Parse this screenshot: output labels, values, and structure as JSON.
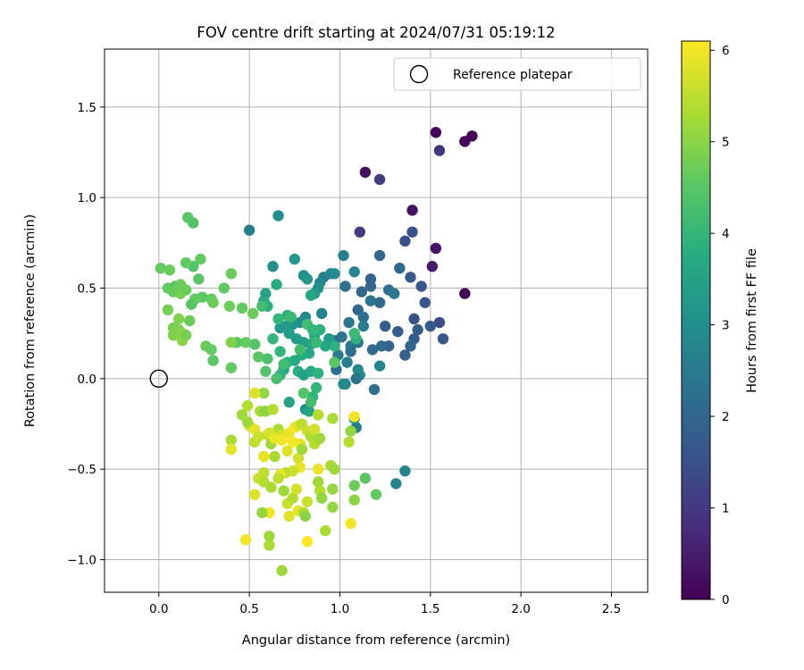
{
  "chart_data": {
    "type": "scatter",
    "title": "FOV centre drift starting at 2024/07/31 05:19:12",
    "xlabel": "Angular distance from reference (arcmin)",
    "ylabel": "Rotation from reference (arcmin)",
    "xlim": [
      -0.3,
      2.7
    ],
    "ylim": [
      -1.18,
      1.82
    ],
    "xticks": [
      0.0,
      0.5,
      1.0,
      1.5,
      2.0,
      2.5
    ],
    "xtick_labels": [
      "0.0",
      "0.5",
      "1.0",
      "1.5",
      "2.0",
      "2.5"
    ],
    "yticks": [
      -1.0,
      -0.5,
      0.0,
      0.5,
      1.0,
      1.5
    ],
    "ytick_labels": [
      "−1.0",
      "−0.5",
      "0.0",
      "0.5",
      "1.0",
      "1.5"
    ],
    "grid": true,
    "legend": {
      "placement": "upper right",
      "entries": [
        "Reference platepar"
      ]
    },
    "reference_point": {
      "x": 0.0,
      "y": 0.0,
      "label": "Reference platepar",
      "marker": "open-circle"
    },
    "colorbar": {
      "label": "Hours from first FF file",
      "colormap": "viridis",
      "range": [
        0,
        6.1
      ],
      "ticks": [
        0,
        1,
        2,
        3,
        4,
        5,
        6
      ],
      "tick_labels": [
        "0",
        "1",
        "2",
        "3",
        "4",
        "5",
        "6"
      ]
    },
    "points": [
      {
        "x": 1.53,
        "y": 1.36,
        "h": 0.1
      },
      {
        "x": 1.73,
        "y": 1.34,
        "h": 0.0
      },
      {
        "x": 1.69,
        "y": 1.31,
        "h": 0.1
      },
      {
        "x": 1.55,
        "y": 1.26,
        "h": 0.9
      },
      {
        "x": 1.14,
        "y": 1.14,
        "h": 0.3
      },
      {
        "x": 1.22,
        "y": 1.1,
        "h": 1.1
      },
      {
        "x": 1.4,
        "y": 0.93,
        "h": 0.3
      },
      {
        "x": 1.11,
        "y": 0.81,
        "h": 1.1
      },
      {
        "x": 1.4,
        "y": 0.81,
        "h": 1.5
      },
      {
        "x": 1.53,
        "y": 0.72,
        "h": 0.3
      },
      {
        "x": 1.51,
        "y": 0.62,
        "h": 0.4
      },
      {
        "x": 1.69,
        "y": 0.47,
        "h": 0.0
      },
      {
        "x": 1.36,
        "y": 0.76,
        "h": 1.5
      },
      {
        "x": 1.22,
        "y": 0.68,
        "h": 2.0
      },
      {
        "x": 1.33,
        "y": 0.61,
        "h": 2.1
      },
      {
        "x": 1.45,
        "y": 0.51,
        "h": 1.6
      },
      {
        "x": 1.47,
        "y": 0.42,
        "h": 1.6
      },
      {
        "x": 1.39,
        "y": 0.56,
        "h": 1.7
      },
      {
        "x": 1.55,
        "y": 0.31,
        "h": 1.4
      },
      {
        "x": 1.41,
        "y": 0.33,
        "h": 1.5
      },
      {
        "x": 1.43,
        "y": 0.27,
        "h": 1.8
      },
      {
        "x": 1.41,
        "y": 0.22,
        "h": 1.7
      },
      {
        "x": 1.39,
        "y": 0.18,
        "h": 2.0
      },
      {
        "x": 1.36,
        "y": 0.13,
        "h": 1.9
      },
      {
        "x": 1.57,
        "y": 0.22,
        "h": 1.6
      },
      {
        "x": 1.5,
        "y": 0.29,
        "h": 1.7
      },
      {
        "x": 1.27,
        "y": 0.49,
        "h": 2.2
      },
      {
        "x": 1.3,
        "y": 0.47,
        "h": 2.4
      },
      {
        "x": 1.17,
        "y": 0.55,
        "h": 1.9
      },
      {
        "x": 1.17,
        "y": 0.51,
        "h": 2.0
      },
      {
        "x": 1.12,
        "y": 0.48,
        "h": 2.1
      },
      {
        "x": 1.17,
        "y": 0.43,
        "h": 2.3
      },
      {
        "x": 1.03,
        "y": 0.51,
        "h": 2.2
      },
      {
        "x": 1.02,
        "y": 0.68,
        "h": 2.6
      },
      {
        "x": 1.08,
        "y": 0.59,
        "h": 2.7
      },
      {
        "x": 1.22,
        "y": 0.42,
        "h": 2.0
      },
      {
        "x": 1.25,
        "y": 0.29,
        "h": 1.8
      },
      {
        "x": 1.32,
        "y": 0.26,
        "h": 1.8
      },
      {
        "x": 1.27,
        "y": 0.18,
        "h": 1.9
      },
      {
        "x": 1.23,
        "y": 0.18,
        "h": 2.1
      },
      {
        "x": 1.18,
        "y": 0.16,
        "h": 2.1
      },
      {
        "x": 1.1,
        "y": 0.38,
        "h": 2.0
      },
      {
        "x": 1.13,
        "y": 0.34,
        "h": 2.2
      },
      {
        "x": 1.13,
        "y": 0.29,
        "h": 2.5
      },
      {
        "x": 1.05,
        "y": 0.31,
        "h": 2.4
      },
      {
        "x": 1.01,
        "y": 0.23,
        "h": 2.3
      },
      {
        "x": 1.06,
        "y": 0.18,
        "h": 2.4
      },
      {
        "x": 1.1,
        "y": 0.2,
        "h": 2.3
      },
      {
        "x": 1.06,
        "y": 0.15,
        "h": 2.2
      },
      {
        "x": 0.97,
        "y": 0.21,
        "h": 2.2
      },
      {
        "x": 0.99,
        "y": 0.13,
        "h": 2.5
      },
      {
        "x": 1.04,
        "y": 0.09,
        "h": 2.6
      },
      {
        "x": 0.98,
        "y": 0.05,
        "h": 2.2
      },
      {
        "x": 1.1,
        "y": 0.05,
        "h": 2.8
      },
      {
        "x": 1.11,
        "y": 0.02,
        "h": 2.9
      },
      {
        "x": 1.09,
        "y": 0.0,
        "h": 2.3
      },
      {
        "x": 1.03,
        "y": -0.03,
        "h": 2.5
      },
      {
        "x": 1.02,
        "y": -0.03,
        "h": 2.9
      },
      {
        "x": 1.19,
        "y": -0.06,
        "h": 2.2
      },
      {
        "x": 1.22,
        "y": 0.07,
        "h": 2.8
      },
      {
        "x": 1.09,
        "y": -0.27,
        "h": 2.6
      },
      {
        "x": 1.08,
        "y": -0.22,
        "h": 2.9
      },
      {
        "x": 1.36,
        "y": -0.51,
        "h": 2.8
      },
      {
        "x": 1.31,
        "y": -0.58,
        "h": 2.7
      },
      {
        "x": 0.91,
        "y": 0.56,
        "h": 2.6
      },
      {
        "x": 0.95,
        "y": 0.58,
        "h": 2.7
      },
      {
        "x": 0.97,
        "y": 0.58,
        "h": 2.9
      },
      {
        "x": 0.89,
        "y": 0.53,
        "h": 2.8
      },
      {
        "x": 0.88,
        "y": 0.5,
        "h": 3.0
      },
      {
        "x": 0.86,
        "y": 0.47,
        "h": 3.2
      },
      {
        "x": 0.84,
        "y": 0.46,
        "h": 3.6
      },
      {
        "x": 0.8,
        "y": 0.57,
        "h": 3.0
      },
      {
        "x": 0.82,
        "y": 0.55,
        "h": 3.2
      },
      {
        "x": 0.75,
        "y": 0.66,
        "h": 3.2
      },
      {
        "x": 0.63,
        "y": 0.62,
        "h": 3.0
      },
      {
        "x": 0.66,
        "y": 0.9,
        "h": 3.0
      },
      {
        "x": 0.5,
        "y": 0.82,
        "h": 2.6
      },
      {
        "x": 0.59,
        "y": 0.47,
        "h": 3.5
      },
      {
        "x": 0.65,
        "y": 0.52,
        "h": 3.7
      },
      {
        "x": 0.58,
        "y": 0.43,
        "h": 3.6
      },
      {
        "x": 0.6,
        "y": 0.4,
        "h": 3.8
      },
      {
        "x": 0.9,
        "y": 0.36,
        "h": 2.7
      },
      {
        "x": 0.81,
        "y": 0.34,
        "h": 2.9
      },
      {
        "x": 0.78,
        "y": 0.31,
        "h": 3.0
      },
      {
        "x": 0.74,
        "y": 0.3,
        "h": 3.1
      },
      {
        "x": 0.7,
        "y": 0.29,
        "h": 3.3
      },
      {
        "x": 0.67,
        "y": 0.28,
        "h": 3.2
      },
      {
        "x": 0.72,
        "y": 0.25,
        "h": 3.4
      },
      {
        "x": 0.76,
        "y": 0.22,
        "h": 3.3
      },
      {
        "x": 0.8,
        "y": 0.2,
        "h": 3.4
      },
      {
        "x": 0.84,
        "y": 0.19,
        "h": 3.6
      },
      {
        "x": 0.86,
        "y": 0.24,
        "h": 3.7
      },
      {
        "x": 0.89,
        "y": 0.27,
        "h": 3.9
      },
      {
        "x": 0.83,
        "y": 0.14,
        "h": 3.6
      },
      {
        "x": 0.79,
        "y": 0.13,
        "h": 3.8
      },
      {
        "x": 0.75,
        "y": 0.1,
        "h": 3.7
      },
      {
        "x": 0.71,
        "y": 0.09,
        "h": 3.8
      },
      {
        "x": 0.69,
        "y": 0.05,
        "h": 3.6
      },
      {
        "x": 0.67,
        "y": 0.02,
        "h": 3.9
      },
      {
        "x": 0.77,
        "y": 0.04,
        "h": 3.8
      },
      {
        "x": 0.8,
        "y": 0.02,
        "h": 3.5
      },
      {
        "x": 0.84,
        "y": 0.04,
        "h": 3.7
      },
      {
        "x": 0.88,
        "y": 0.03,
        "h": 3.9
      },
      {
        "x": 0.94,
        "y": 0.22,
        "h": 3.3
      },
      {
        "x": 0.97,
        "y": 0.18,
        "h": 3.9
      },
      {
        "x": 0.92,
        "y": 0.18,
        "h": 3.6
      },
      {
        "x": 1.09,
        "y": 0.22,
        "h": 3.9
      },
      {
        "x": 1.08,
        "y": 0.25,
        "h": 4.1
      },
      {
        "x": 0.71,
        "y": 0.35,
        "h": 3.9
      },
      {
        "x": 0.73,
        "y": 0.34,
        "h": 4.1
      },
      {
        "x": 0.66,
        "y": 0.33,
        "h": 4.0
      },
      {
        "x": 0.63,
        "y": 0.22,
        "h": 4.0
      },
      {
        "x": 0.67,
        "y": 0.15,
        "h": 4.0
      },
      {
        "x": 0.69,
        "y": 0.08,
        "h": 4.2
      },
      {
        "x": 0.82,
        "y": 0.3,
        "h": 4.2
      },
      {
        "x": 0.85,
        "y": 0.27,
        "h": 4.0
      },
      {
        "x": 0.87,
        "y": 0.2,
        "h": 4.1
      },
      {
        "x": 0.78,
        "y": 0.16,
        "h": 4.2
      },
      {
        "x": 0.6,
        "y": 0.11,
        "h": 4.3
      },
      {
        "x": 0.59,
        "y": 0.04,
        "h": 4.4
      },
      {
        "x": 0.65,
        "y": 0.0,
        "h": 4.3
      },
      {
        "x": 0.72,
        "y": -0.13,
        "h": 3.5
      },
      {
        "x": 0.81,
        "y": -0.17,
        "h": 3.0
      },
      {
        "x": 0.83,
        "y": -0.18,
        "h": 3.6
      },
      {
        "x": 0.85,
        "y": -0.1,
        "h": 3.9
      },
      {
        "x": 0.87,
        "y": -0.05,
        "h": 4.0
      },
      {
        "x": 0.84,
        "y": -0.13,
        "h": 4.2
      },
      {
        "x": 0.8,
        "y": -0.08,
        "h": 4.4
      },
      {
        "x": 0.97,
        "y": 0.09,
        "h": 4.5
      },
      {
        "x": 0.53,
        "y": 0.19,
        "h": 4.4
      },
      {
        "x": 0.55,
        "y": 0.12,
        "h": 4.5
      },
      {
        "x": 0.48,
        "y": 0.2,
        "h": 4.6
      },
      {
        "x": 0.43,
        "y": 0.2,
        "h": 4.5
      },
      {
        "x": 0.4,
        "y": 0.06,
        "h": 4.6
      },
      {
        "x": 0.3,
        "y": 0.1,
        "h": 4.5
      },
      {
        "x": 0.26,
        "y": 0.18,
        "h": 4.7
      },
      {
        "x": 0.29,
        "y": 0.16,
        "h": 4.6
      },
      {
        "x": 0.39,
        "y": 0.4,
        "h": 4.7
      },
      {
        "x": 0.46,
        "y": 0.39,
        "h": 4.6
      },
      {
        "x": 0.52,
        "y": 0.36,
        "h": 4.7
      },
      {
        "x": 0.57,
        "y": 0.4,
        "h": 4.2
      },
      {
        "x": 0.36,
        "y": 0.5,
        "h": 4.6
      },
      {
        "x": 0.4,
        "y": 0.58,
        "h": 4.7
      },
      {
        "x": 0.29,
        "y": 0.44,
        "h": 4.6
      },
      {
        "x": 0.24,
        "y": 0.45,
        "h": 4.5
      },
      {
        "x": 0.3,
        "y": 0.42,
        "h": 4.7
      },
      {
        "x": 0.22,
        "y": 0.55,
        "h": 4.5
      },
      {
        "x": 0.23,
        "y": 0.66,
        "h": 4.6
      },
      {
        "x": 0.19,
        "y": 0.62,
        "h": 4.4
      },
      {
        "x": 0.15,
        "y": 0.64,
        "h": 4.6
      },
      {
        "x": 0.16,
        "y": 0.89,
        "h": 4.5
      },
      {
        "x": 0.19,
        "y": 0.86,
        "h": 4.4
      },
      {
        "x": 0.01,
        "y": 0.61,
        "h": 4.6
      },
      {
        "x": 0.06,
        "y": 0.6,
        "h": 4.7
      },
      {
        "x": 0.05,
        "y": 0.5,
        "h": 4.6
      },
      {
        "x": 0.09,
        "y": 0.51,
        "h": 4.5
      },
      {
        "x": 0.12,
        "y": 0.52,
        "h": 4.7
      },
      {
        "x": 0.08,
        "y": 0.48,
        "h": 4.6
      },
      {
        "x": 0.12,
        "y": 0.47,
        "h": 4.8
      },
      {
        "x": 0.15,
        "y": 0.49,
        "h": 4.7
      },
      {
        "x": 0.2,
        "y": 0.44,
        "h": 4.6
      },
      {
        "x": 0.18,
        "y": 0.41,
        "h": 4.5
      },
      {
        "x": 0.05,
        "y": 0.38,
        "h": 4.8
      },
      {
        "x": 0.11,
        "y": 0.33,
        "h": 4.9
      },
      {
        "x": 0.17,
        "y": 0.32,
        "h": 4.7
      },
      {
        "x": 0.08,
        "y": 0.28,
        "h": 4.8
      },
      {
        "x": 0.11,
        "y": 0.27,
        "h": 4.9
      },
      {
        "x": 0.13,
        "y": 0.25,
        "h": 5.0
      },
      {
        "x": 0.08,
        "y": 0.24,
        "h": 4.9
      },
      {
        "x": 0.13,
        "y": 0.21,
        "h": 5.0
      },
      {
        "x": 0.15,
        "y": 0.24,
        "h": 4.8
      },
      {
        "x": 0.4,
        "y": 0.2,
        "h": 4.9
      },
      {
        "x": 0.58,
        "y": -0.08,
        "h": 5.1
      },
      {
        "x": 0.53,
        "y": -0.08,
        "h": 5.8
      },
      {
        "x": 0.49,
        "y": -0.15,
        "h": 5.4
      },
      {
        "x": 0.46,
        "y": -0.2,
        "h": 5.2
      },
      {
        "x": 0.56,
        "y": -0.18,
        "h": 5.3
      },
      {
        "x": 0.59,
        "y": -0.18,
        "h": 5.0
      },
      {
        "x": 0.63,
        "y": -0.17,
        "h": 5.4
      },
      {
        "x": 0.5,
        "y": -0.26,
        "h": 5.6
      },
      {
        "x": 0.53,
        "y": -0.28,
        "h": 5.9
      },
      {
        "x": 0.49,
        "y": -0.24,
        "h": 5.2
      },
      {
        "x": 0.4,
        "y": -0.34,
        "h": 5.3
      },
      {
        "x": 0.4,
        "y": -0.39,
        "h": 5.9
      },
      {
        "x": 0.53,
        "y": -0.35,
        "h": 5.5
      },
      {
        "x": 0.55,
        "y": -0.32,
        "h": 5.6
      },
      {
        "x": 0.6,
        "y": -0.31,
        "h": 5.5
      },
      {
        "x": 0.66,
        "y": -0.28,
        "h": 5.3
      },
      {
        "x": 0.62,
        "y": -0.36,
        "h": 5.2
      },
      {
        "x": 0.68,
        "y": -0.31,
        "h": 5.7
      },
      {
        "x": 0.72,
        "y": -0.3,
        "h": 5.9
      },
      {
        "x": 0.75,
        "y": -0.27,
        "h": 6.0
      },
      {
        "x": 0.77,
        "y": -0.26,
        "h": 5.8
      },
      {
        "x": 0.79,
        "y": -0.25,
        "h": 5.5
      },
      {
        "x": 0.82,
        "y": -0.29,
        "h": 5.6
      },
      {
        "x": 0.84,
        "y": -0.32,
        "h": 5.3
      },
      {
        "x": 0.86,
        "y": -0.36,
        "h": 5.4
      },
      {
        "x": 0.89,
        "y": -0.33,
        "h": 5.2
      },
      {
        "x": 0.86,
        "y": -0.28,
        "h": 5.7
      },
      {
        "x": 0.78,
        "y": -0.36,
        "h": 5.9
      },
      {
        "x": 0.74,
        "y": -0.35,
        "h": 6.0
      },
      {
        "x": 0.71,
        "y": -0.4,
        "h": 5.8
      },
      {
        "x": 0.77,
        "y": -0.44,
        "h": 5.7
      },
      {
        "x": 0.78,
        "y": -0.49,
        "h": 5.9
      },
      {
        "x": 0.74,
        "y": -0.51,
        "h": 5.6
      },
      {
        "x": 0.7,
        "y": -0.52,
        "h": 5.5
      },
      {
        "x": 0.67,
        "y": -0.53,
        "h": 5.9
      },
      {
        "x": 0.58,
        "y": -0.43,
        "h": 5.9
      },
      {
        "x": 0.58,
        "y": -0.52,
        "h": 5.5
      },
      {
        "x": 0.64,
        "y": -0.43,
        "h": 5.3
      },
      {
        "x": 0.55,
        "y": -0.55,
        "h": 5.6
      },
      {
        "x": 0.53,
        "y": -0.64,
        "h": 5.8
      },
      {
        "x": 0.58,
        "y": -0.57,
        "h": 5.4
      },
      {
        "x": 0.62,
        "y": -0.6,
        "h": 5.3
      },
      {
        "x": 0.66,
        "y": -0.55,
        "h": 5.5
      },
      {
        "x": 0.69,
        "y": -0.62,
        "h": 5.2
      },
      {
        "x": 0.71,
        "y": -0.69,
        "h": 5.6
      },
      {
        "x": 0.74,
        "y": -0.66,
        "h": 5.4
      },
      {
        "x": 0.76,
        "y": -0.61,
        "h": 5.7
      },
      {
        "x": 0.77,
        "y": -0.73,
        "h": 5.9
      },
      {
        "x": 0.72,
        "y": -0.76,
        "h": 5.8
      },
      {
        "x": 0.8,
        "y": -0.74,
        "h": 5.3
      },
      {
        "x": 0.81,
        "y": -0.76,
        "h": 5.0
      },
      {
        "x": 0.82,
        "y": -0.68,
        "h": 5.6
      },
      {
        "x": 0.88,
        "y": -0.57,
        "h": 5.2
      },
      {
        "x": 0.89,
        "y": -0.62,
        "h": 5.4
      },
      {
        "x": 0.9,
        "y": -0.66,
        "h": 5.1
      },
      {
        "x": 0.88,
        "y": -0.5,
        "h": 5.9
      },
      {
        "x": 0.95,
        "y": -0.48,
        "h": 5.3
      },
      {
        "x": 0.97,
        "y": -0.5,
        "h": 5.2
      },
      {
        "x": 0.96,
        "y": -0.61,
        "h": 5.1
      },
      {
        "x": 0.92,
        "y": -0.84,
        "h": 5.3
      },
      {
        "x": 0.96,
        "y": -0.71,
        "h": 5.1
      },
      {
        "x": 1.06,
        "y": -0.8,
        "h": 6.0
      },
      {
        "x": 1.08,
        "y": -0.67,
        "h": 5.0
      },
      {
        "x": 1.08,
        "y": -0.59,
        "h": 4.7
      },
      {
        "x": 1.14,
        "y": -0.55,
        "h": 4.5
      },
      {
        "x": 1.2,
        "y": -0.64,
        "h": 4.6
      },
      {
        "x": 1.05,
        "y": -0.35,
        "h": 5.4
      },
      {
        "x": 1.06,
        "y": -0.29,
        "h": 5.1
      },
      {
        "x": 1.08,
        "y": -0.21,
        "h": 6.0
      },
      {
        "x": 0.96,
        "y": -0.22,
        "h": 5.3
      },
      {
        "x": 0.82,
        "y": -0.9,
        "h": 6.1
      },
      {
        "x": 0.48,
        "y": -0.89,
        "h": 6.0
      },
      {
        "x": 0.61,
        "y": -0.74,
        "h": 6.0
      },
      {
        "x": 0.57,
        "y": -0.74,
        "h": 5.1
      },
      {
        "x": 0.61,
        "y": -0.87,
        "h": 5.2
      },
      {
        "x": 0.61,
        "y": -0.92,
        "h": 5.3
      },
      {
        "x": 0.68,
        "y": -1.06,
        "h": 5.2
      },
      {
        "x": 0.61,
        "y": -0.3,
        "h": 5.7
      },
      {
        "x": 0.64,
        "y": -0.33,
        "h": 5.9
      },
      {
        "x": 0.68,
        "y": -0.34,
        "h": 6.0
      },
      {
        "x": 0.79,
        "y": -0.39,
        "h": 5.2
      },
      {
        "x": 0.88,
        "y": -0.2,
        "h": 5.4
      }
    ]
  }
}
